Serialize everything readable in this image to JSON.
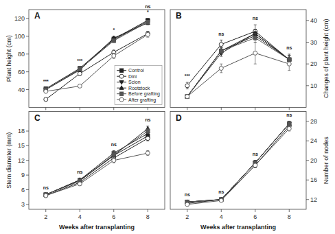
{
  "chart_data": [
    {
      "type": "line",
      "title": "A",
      "ylabel": "Plant height (cm)",
      "x": [
        2,
        4,
        6,
        8
      ],
      "xlim": [
        1,
        9
      ],
      "xticks": [
        2,
        4,
        6,
        8
      ],
      "ylim": [
        20,
        130
      ],
      "yticks": [
        40,
        60,
        80,
        100,
        120
      ],
      "tick_labels": "y",
      "legend": "lower right",
      "series": [
        {
          "name": "Control",
          "color": "#222222",
          "marker": "square",
          "line_style": "solid",
          "values": [
            41,
            64,
            97,
            118
          ],
          "errors": [
            1.0,
            1.5,
            2.0,
            2.0
          ]
        },
        {
          "name": "Dini",
          "color": "#222222",
          "marker": "circle-open",
          "line_style": "solid",
          "values": [
            29,
            58,
            82,
            103
          ],
          "errors": [
            1.5,
            2.0,
            2.5,
            2.5
          ]
        },
        {
          "name": "Scion",
          "color": "#222222",
          "marker": "triangle-down",
          "line_style": "solid",
          "values": [
            40,
            63,
            96,
            117
          ],
          "errors": [
            1.0,
            1.5,
            2.0,
            2.0
          ]
        },
        {
          "name": "Rootstock",
          "color": "#222222",
          "marker": "triangle-up",
          "line_style": "solid",
          "values": [
            40,
            62,
            98,
            115
          ],
          "errors": [
            1.0,
            1.5,
            2.0,
            2.0
          ]
        },
        {
          "name": "Before grafting",
          "color": "#555555",
          "marker": "square",
          "line_style": "solid",
          "values": [
            40,
            63,
            95,
            116
          ],
          "errors": [
            1.0,
            1.5,
            2.0,
            2.0
          ]
        },
        {
          "name": "After grafting",
          "color": "#555555",
          "marker": "circle-open",
          "line_style": "solid",
          "values": [
            38,
            44,
            78,
            102
          ],
          "errors": [
            1.0,
            1.5,
            3.0,
            3.0
          ]
        }
      ],
      "annotations": [
        "***",
        "***",
        "*",
        "ns\n*"
      ]
    },
    {
      "type": "line",
      "title": "B",
      "ylabel": "Changes of plant height (cm)",
      "x": [
        2,
        4,
        6,
        8
      ],
      "xlim": [
        1,
        9
      ],
      "xticks": [
        2,
        4,
        6,
        8
      ],
      "ylim": [
        0,
        45
      ],
      "yticks": [
        10,
        20,
        30,
        40
      ],
      "tick_labels": "y",
      "series": [
        {
          "name": "Control",
          "color": "#222222",
          "marker": "square",
          "line_style": "solid",
          "values": [
            5,
            26,
            34,
            22
          ],
          "errors": [
            0.5,
            1.5,
            2.0,
            2.0
          ]
        },
        {
          "name": "Dini",
          "color": "#222222",
          "marker": "circle-open",
          "line_style": "solid",
          "values": [
            10,
            29,
            35,
            22
          ],
          "errors": [
            1.5,
            2.0,
            3.0,
            2.5
          ]
        },
        {
          "name": "Scion",
          "color": "#222222",
          "marker": "triangle-down",
          "line_style": "solid",
          "values": [
            5,
            25,
            34,
            22
          ],
          "errors": [
            0.5,
            1.5,
            2.0,
            2.0
          ]
        },
        {
          "name": "Rootstock",
          "color": "#222222",
          "marker": "triangle-up",
          "line_style": "solid",
          "values": [
            5,
            26,
            33,
            22
          ],
          "errors": [
            0.5,
            1.5,
            2.0,
            2.0
          ]
        },
        {
          "name": "Before grafting",
          "color": "#555555",
          "marker": "square",
          "line_style": "solid",
          "values": [
            5,
            26,
            32,
            22
          ],
          "errors": [
            0.5,
            1.5,
            2.0,
            2.0
          ]
        },
        {
          "name": "After grafting",
          "color": "#555555",
          "marker": "circle-open",
          "line_style": "solid",
          "values": [
            5,
            18,
            25,
            20
          ],
          "errors": [
            0.5,
            2.0,
            5.0,
            3.0
          ]
        }
      ],
      "annotations": [
        "***",
        "ns",
        "ns",
        "ns"
      ]
    },
    {
      "type": "line",
      "title": "C",
      "ylabel": "Stem diameter (mm)",
      "xlabel": "Weeks after transplanting",
      "x": [
        2,
        4,
        6,
        8
      ],
      "xlim": [
        1,
        9
      ],
      "xticks": [
        2,
        4,
        6,
        8
      ],
      "ylim": [
        2,
        22
      ],
      "yticks": [
        3,
        6,
        9,
        12,
        15,
        18
      ],
      "series": [
        {
          "name": "Control",
          "color": "#222222",
          "marker": "square",
          "line_style": "solid",
          "values": [
            5.0,
            7.8,
            13.0,
            17.0
          ],
          "errors": [
            0.2,
            0.3,
            0.5,
            0.5
          ]
        },
        {
          "name": "Dini",
          "color": "#222222",
          "marker": "circle-open",
          "line_style": "solid",
          "values": [
            4.8,
            7.5,
            12.5,
            16.5
          ],
          "errors": [
            0.2,
            0.3,
            0.5,
            0.5
          ]
        },
        {
          "name": "Scion",
          "color": "#222222",
          "marker": "triangle-down",
          "line_style": "solid",
          "values": [
            5.0,
            8.0,
            13.5,
            17.5
          ],
          "errors": [
            0.2,
            0.3,
            0.5,
            0.5
          ]
        },
        {
          "name": "Rootstock",
          "color": "#222222",
          "marker": "triangle-up",
          "line_style": "solid",
          "values": [
            5.0,
            8.0,
            13.0,
            18.5
          ],
          "errors": [
            0.2,
            0.3,
            0.5,
            0.5
          ]
        },
        {
          "name": "Before grafting",
          "color": "#555555",
          "marker": "square",
          "line_style": "solid",
          "values": [
            5.0,
            7.8,
            13.2,
            18.0
          ],
          "errors": [
            0.2,
            0.3,
            0.5,
            0.5
          ]
        },
        {
          "name": "After grafting",
          "color": "#555555",
          "marker": "circle-open",
          "line_style": "solid",
          "values": [
            4.8,
            7.2,
            12.0,
            13.5
          ],
          "errors": [
            0.2,
            0.3,
            0.5,
            0.5
          ]
        }
      ],
      "annotations": [
        "ns",
        "ns",
        "ns",
        "ns"
      ]
    },
    {
      "type": "line",
      "title": "D",
      "ylabel": "Number of nodes",
      "xlabel": "Weeks after transplanting",
      "x": [
        2,
        4,
        6,
        8
      ],
      "xlim": [
        1,
        9
      ],
      "xticks": [
        2,
        4,
        6,
        8
      ],
      "ylim": [
        10,
        30
      ],
      "yticks": [
        12,
        16,
        20,
        24,
        28
      ],
      "series": [
        {
          "name": "Control",
          "color": "#222222",
          "marker": "square",
          "line_style": "solid",
          "values": [
            11.5,
            12.0,
            19.5,
            27.5
          ],
          "errors": [
            0.2,
            0.3,
            0.5,
            0.5
          ]
        },
        {
          "name": "Dini",
          "color": "#222222",
          "marker": "circle-open",
          "line_style": "solid",
          "values": [
            11.2,
            12.0,
            19.0,
            27.0
          ],
          "errors": [
            0.2,
            0.3,
            0.5,
            0.5
          ]
        },
        {
          "name": "Scion",
          "color": "#222222",
          "marker": "triangle-down",
          "line_style": "solid",
          "values": [
            11.5,
            12.0,
            19.5,
            27.5
          ],
          "errors": [
            0.2,
            0.3,
            0.5,
            0.5
          ]
        },
        {
          "name": "Rootstock",
          "color": "#222222",
          "marker": "triangle-up",
          "line_style": "solid",
          "values": [
            11.5,
            12.0,
            19.5,
            27.5
          ],
          "errors": [
            0.2,
            0.3,
            0.5,
            0.5
          ]
        },
        {
          "name": "Before grafting",
          "color": "#555555",
          "marker": "square",
          "line_style": "solid",
          "values": [
            11.5,
            12.0,
            19.5,
            27.5
          ],
          "errors": [
            0.2,
            0.3,
            0.5,
            0.5
          ]
        },
        {
          "name": "After grafting",
          "color": "#555555",
          "marker": "circle-open",
          "line_style": "solid",
          "values": [
            11.0,
            11.8,
            19.0,
            26.5
          ],
          "errors": [
            0.2,
            0.3,
            0.5,
            0.5
          ]
        }
      ],
      "annotations": [
        "ns",
        "ns",
        "ns",
        "ns"
      ]
    }
  ]
}
